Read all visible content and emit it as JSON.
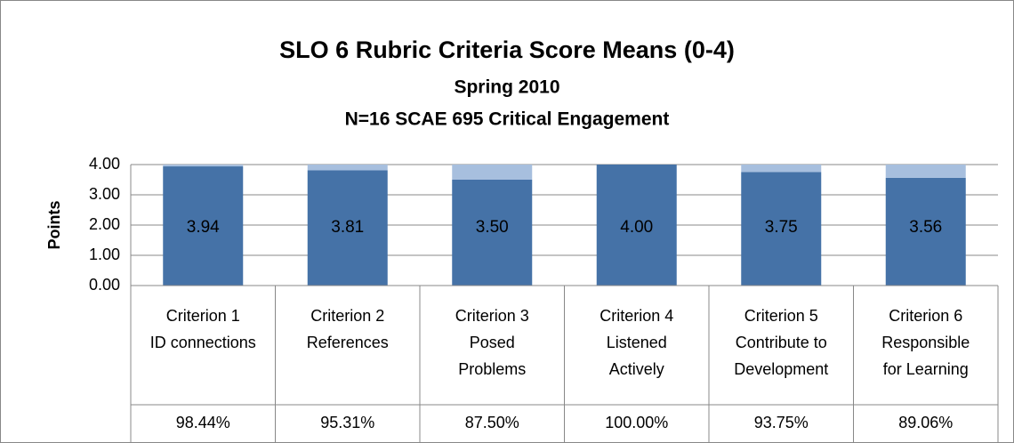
{
  "chart_data": {
    "type": "bar",
    "stacked": true,
    "title": "SLO 6 Rubric Criteria Score Means (0-4)",
    "subtitle": "Spring 2010",
    "subtitle2": "N=16 SCAE 695 Critical Engagement",
    "y_label": "Points",
    "categories": [
      [
        "Criterion 1",
        "ID connections"
      ],
      [
        "Criterion 2",
        "References"
      ],
      [
        "Criterion 3",
        "Posed",
        "Problems"
      ],
      [
        "Criterion 4",
        "Listened",
        "Actively"
      ],
      [
        "Criterion 5",
        "Contribute to",
        "Development"
      ],
      [
        "Criterion 6",
        "Responsible",
        "for Learning"
      ]
    ],
    "series": [
      {
        "color": "#4572a7",
        "values": [
          3.94,
          3.81,
          3.5,
          4,
          3.75,
          3.56
        ],
        "value_labels": [
          "3.94",
          "3.81",
          "3.50",
          "4.00",
          "3.75",
          "3.56"
        ]
      },
      {
        "color": "#a7bfde",
        "values": [
          0.06,
          0.19,
          0.5,
          0,
          0.25,
          0.44
        ]
      }
    ],
    "table_row": [
      "98.44%",
      "95.31%",
      "87.50%",
      "100.00%",
      "93.75%",
      "89.06%"
    ],
    "ylim": [
      0,
      4
    ],
    "yticks": [
      {
        "value": 0,
        "label": "0.00"
      },
      {
        "value": 1,
        "label": "1.00"
      },
      {
        "value": 2,
        "label": "2.00"
      },
      {
        "value": 3,
        "label": "3.00"
      },
      {
        "value": 4,
        "label": "4.00"
      }
    ],
    "grid": true
  }
}
